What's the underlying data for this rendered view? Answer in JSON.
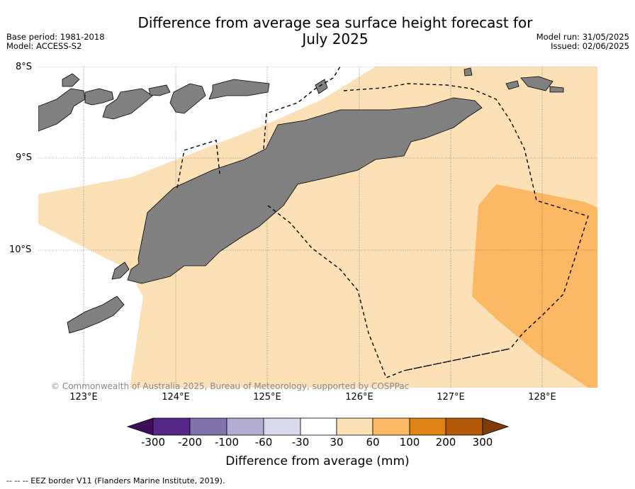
{
  "title_line1": "Difference from average sea surface height forecast for",
  "title_line2": "July 2025",
  "meta_left": [
    "Base period: 1981-2018",
    "Model: ACCESS-S2"
  ],
  "meta_right": [
    "Model run: 31/05/2025",
    "Issued: 02/06/2025"
  ],
  "lat_labels": [
    "8°S",
    "9°S",
    "10°S"
  ],
  "lon_labels": [
    "123°E",
    "124°E",
    "125°E",
    "126°E",
    "127°E",
    "128°E"
  ],
  "copyright": "© Commonwealth of Australia 2025, Bureau of Meteorology, supported by COSPPac",
  "colorbar": {
    "ticks": [
      "-300",
      "-200",
      "-100",
      "-60",
      "-30",
      "30",
      "60",
      "100",
      "200",
      "300"
    ],
    "colors": [
      "#3f0d5a",
      "#542788",
      "#8073ac",
      "#b2abd2",
      "#d8daeb",
      "#ffffff",
      "#fee0b6",
      "#fdb863",
      "#e08214",
      "#b35806",
      "#7f3b08"
    ],
    "title": "Difference from average (mm)"
  },
  "footnote": "--  --  -- EEZ border V11 (Flanders Marine Institute, 2019).",
  "fills": {
    "band_30_60": "#fee0b6",
    "band_60_100": "#fdb863",
    "land": "#808080"
  }
}
